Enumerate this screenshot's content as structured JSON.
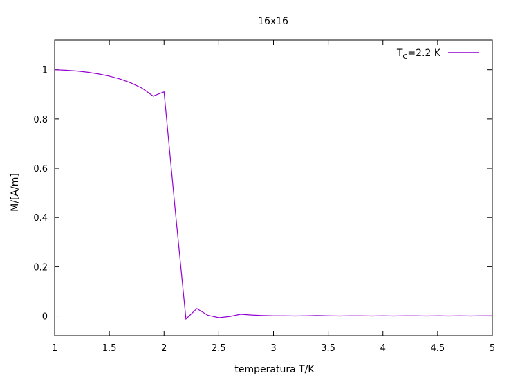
{
  "chart_data": {
    "type": "line",
    "title": "16x16",
    "xlabel": "temperatura T/K",
    "ylabel": "M/[A/m]",
    "xlim": [
      1,
      5
    ],
    "ylim": [
      -0.08,
      1.12
    ],
    "xticks": [
      1,
      1.5,
      2,
      2.5,
      3,
      3.5,
      4,
      4.5,
      5
    ],
    "xtick_labels": [
      "1",
      "1.5",
      "2",
      "2.5",
      "3",
      "3.5",
      "4",
      "4.5",
      "5"
    ],
    "yticks": [
      0,
      0.2,
      0.4,
      0.6,
      0.8,
      1
    ],
    "ytick_labels": [
      "0",
      "0.2",
      "0.4",
      "0.6",
      "0.8",
      "1"
    ],
    "grid": false,
    "legend_position": "top-right",
    "series": [
      {
        "name_main": "T",
        "name_sub": "C",
        "name_rest": "=2.2 K",
        "color": "#9400d3",
        "x": [
          1.0,
          1.1,
          1.2,
          1.3,
          1.4,
          1.5,
          1.6,
          1.7,
          1.8,
          1.9,
          2.0,
          2.1,
          2.2,
          2.3,
          2.4,
          2.5,
          2.6,
          2.7,
          2.8,
          2.9,
          3.0,
          3.1,
          3.2,
          3.3,
          3.4,
          3.5,
          3.6,
          3.7,
          3.8,
          3.9,
          4.0,
          4.1,
          4.2,
          4.3,
          4.4,
          4.5,
          4.6,
          4.7,
          4.8,
          4.9,
          5.0
        ],
        "y": [
          1.0,
          0.998,
          0.995,
          0.99,
          0.983,
          0.974,
          0.962,
          0.946,
          0.925,
          0.893,
          0.91,
          0.44,
          -0.012,
          0.03,
          0.003,
          -0.007,
          -0.002,
          0.007,
          0.004,
          0.002,
          0.001,
          0.001,
          0.0,
          0.001,
          0.002,
          0.001,
          0.0,
          0.001,
          0.001,
          0.0,
          0.001,
          0.0,
          0.001,
          0.001,
          0.0,
          0.001,
          0.0,
          0.001,
          0.0,
          0.001,
          0.001
        ]
      }
    ]
  }
}
